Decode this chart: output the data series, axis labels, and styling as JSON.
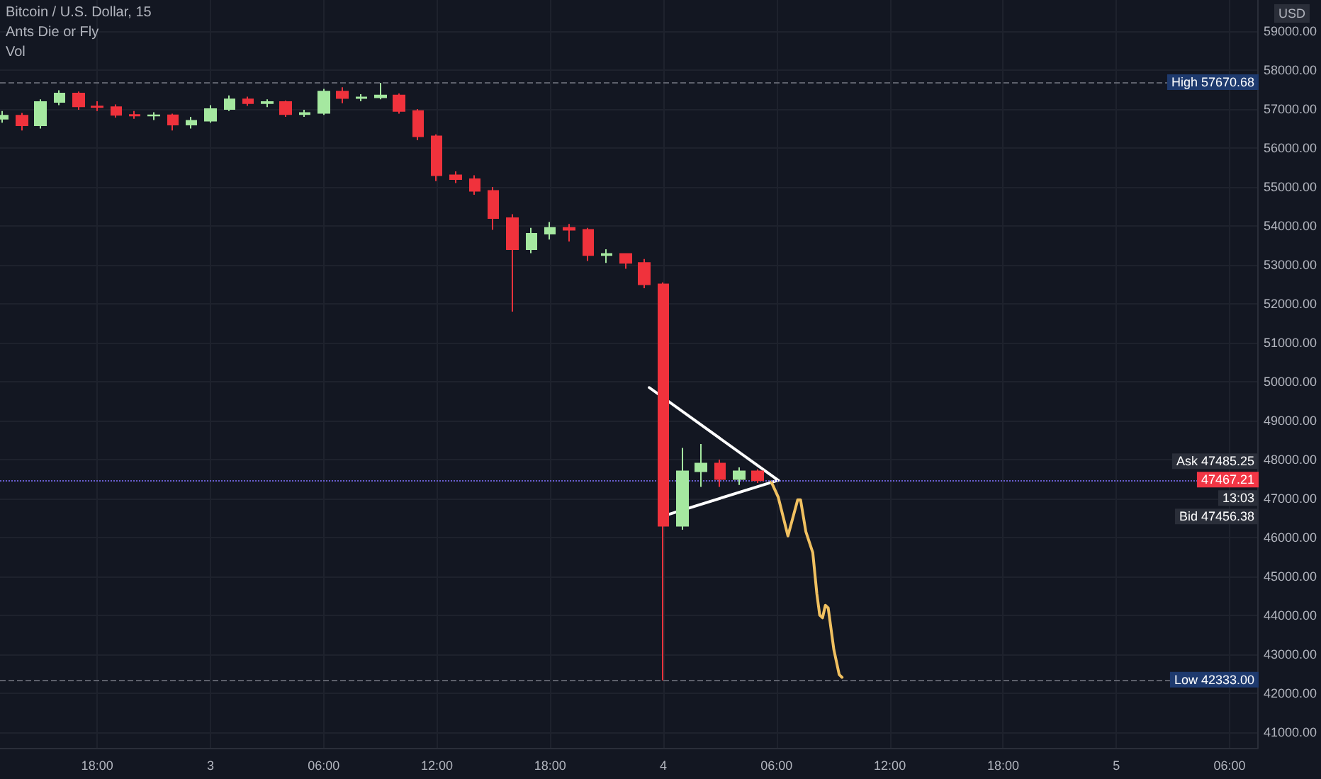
{
  "chart_data": {
    "type": "candlestick",
    "title": "Bitcoin / U.S. Dollar, 15",
    "subtitle": "Ants Die or Fly",
    "ylabel": "USD",
    "annotations": [
      "Vol",
      "Ask 47485.25",
      "13:03",
      "Bid 47456.38"
    ],
    "x": [
      "--12-02T13:00",
      "--12-02T14:00",
      "--12-02T15:00",
      "--12-02T16:00",
      "--12-02T17:00",
      "--12-02T18:00",
      "--12-02T19:00",
      "--12-02T20:00",
      "--12-02T21:00",
      "--12-02T22:00",
      "--12-02T23:00",
      "--12-03T00:00",
      "--12-03T01:00",
      "--12-03T02:00",
      "--12-03T03:00",
      "--12-03T04:00",
      "--12-03T05:00",
      "--12-03T06:00",
      "--12-03T07:00",
      "--12-03T08:00",
      "--12-03T09:00",
      "--12-03T10:00",
      "--12-03T11:00",
      "--12-03T12:00",
      "--12-03T13:00",
      "--12-03T14:00",
      "--12-03T15:00",
      "--12-03T16:00",
      "--12-03T17:00",
      "--12-03T18:00",
      "--12-03T19:00",
      "--12-03T20:00",
      "--12-03T21:00",
      "--12-03T22:00",
      "--12-03T23:00",
      "--12-04T00:00",
      "--12-04T01:00",
      "--12-04T02:00",
      "--12-04T03:00",
      "--12-04T04:00",
      "--12-04T05:00"
    ],
    "ohlc": [
      [
        56750,
        56950,
        56650,
        56830
      ],
      [
        56830,
        56900,
        56450,
        56580
      ],
      [
        56580,
        57250,
        56500,
        57180
      ],
      [
        57180,
        57480,
        57100,
        57400
      ],
      [
        57400,
        57450,
        56980,
        57070
      ],
      [
        57070,
        57200,
        56950,
        57050
      ],
      [
        57050,
        57120,
        56780,
        56850
      ],
      [
        56850,
        56950,
        56750,
        56830
      ],
      [
        56830,
        56920,
        56720,
        56840
      ],
      [
        56840,
        56880,
        56450,
        56600
      ],
      [
        56600,
        56800,
        56500,
        56700
      ],
      [
        56700,
        57100,
        56650,
        57000
      ],
      [
        57000,
        57350,
        56950,
        57250
      ],
      [
        57250,
        57320,
        57080,
        57150
      ],
      [
        57150,
        57250,
        57050,
        57180
      ],
      [
        57180,
        57220,
        56800,
        56870
      ],
      [
        56870,
        56980,
        56800,
        56900
      ],
      [
        56900,
        57520,
        56850,
        57450
      ],
      [
        57450,
        57560,
        57150,
        57280
      ],
      [
        57280,
        57380,
        57200,
        57300
      ],
      [
        57300,
        57670.68,
        57250,
        57350
      ],
      [
        57350,
        57400,
        56880,
        56950
      ],
      [
        56950,
        57000,
        56200,
        56300
      ],
      [
        56300,
        56350,
        55150,
        55300
      ],
      [
        55300,
        55400,
        55100,
        55200
      ],
      [
        55200,
        55300,
        54800,
        54900
      ],
      [
        54900,
        55000,
        53900,
        54200
      ],
      [
        54200,
        54300,
        51800,
        53400
      ],
      [
        53400,
        53950,
        53300,
        53800
      ],
      [
        53800,
        54100,
        53650,
        53950
      ],
      [
        53950,
        54050,
        53600,
        53900
      ],
      [
        53900,
        53950,
        53100,
        53250
      ],
      [
        53250,
        53400,
        53050,
        53280
      ],
      [
        53280,
        53300,
        52900,
        53050
      ],
      [
        53050,
        53150,
        52400,
        52500
      ],
      [
        52500,
        52550,
        42333,
        46300
      ],
      [
        46300,
        48300,
        46200,
        47700
      ],
      [
        47700,
        48400,
        47300,
        47900
      ],
      [
        47900,
        48000,
        47300,
        47500
      ],
      [
        47500,
        47800,
        47350,
        47700
      ],
      [
        47700,
        47750,
        47400,
        47467.21
      ]
    ],
    "colors": [
      "#a5e8a0",
      "#f0323c",
      "#a5e8a0",
      "#a5e8a0",
      "#f0323c",
      "#f0323c",
      "#f0323c",
      "#f0323c",
      "#a5e8a0",
      "#f0323c",
      "#a5e8a0",
      "#a5e8a0",
      "#a5e8a0",
      "#f0323c",
      "#a5e8a0",
      "#f0323c",
      "#a5e8a0",
      "#a5e8a0",
      "#f0323c",
      "#a5e8a0",
      "#a5e8a0",
      "#f0323c",
      "#f0323c",
      "#f0323c",
      "#f0323c",
      "#f0323c",
      "#f0323c",
      "#f0323c",
      "#a5e8a0",
      "#a5e8a0",
      "#f0323c",
      "#f0323c",
      "#a5e8a0",
      "#f0323c",
      "#f0323c",
      "#f0323c",
      "#a5e8a0",
      "#a5e8a0",
      "#f0323c",
      "#a5e8a0",
      "#f0323c"
    ],
    "series": [
      {
        "type": "line",
        "color": "#ffffff",
        "x": [
          "--12-03T23:15",
          "--12-04T06:05"
        ],
        "values": [
          49850,
          47470
        ]
      },
      {
        "type": "line",
        "color": "#ffffff",
        "x": [
          "--12-04T00:11",
          "--12-04T06:05"
        ],
        "values": [
          46580,
          47470
        ]
      },
      {
        "type": "line",
        "color": "#f0c060",
        "x": [
          "--12-04T05:43",
          "--12-04T06:05",
          "--12-04T06:27",
          "--12-04T06:36",
          "--12-04T07:07",
          "--12-04T07:16",
          "--12-04T07:33",
          "--12-04T07:55",
          "--12-04T08:08",
          "--12-04T08:17",
          "--12-04T08:26",
          "--12-04T08:35",
          "--12-04T08:44",
          "--12-04T09:02",
          "--12-04T09:19",
          "--12-04T09:28"
        ],
        "values": [
          47430,
          47040,
          46330,
          46040,
          46970,
          46970,
          46150,
          45610,
          44550,
          44010,
          43940,
          44260,
          44190,
          43120,
          42480,
          42410
        ]
      }
    ],
    "marker": "none",
    "line_style": "solid",
    "ref_lines": [
      {
        "axis": "y",
        "value": 57670.68,
        "label": "High 57670.68",
        "color": "#5d606b",
        "line_style": "dashed"
      },
      {
        "axis": "y",
        "value": 42333,
        "label": "Low 42333.00",
        "color": "#5d606b",
        "line_style": "dashed"
      },
      {
        "axis": "y",
        "value": 47467.21,
        "label": "47467.21",
        "color": "#6a5fd0",
        "line_style": "dotted"
      }
    ],
    "xlim": [
      "--12-02T12:51",
      "--12-05T07:30"
    ],
    "xticks": [
      {
        "value": "--12-02T18:00",
        "label": "18:00"
      },
      {
        "value": "--12-03T00:00",
        "label": "3"
      },
      {
        "value": "--12-03T06:00",
        "label": "06:00"
      },
      {
        "value": "--12-03T12:00",
        "label": "12:00"
      },
      {
        "value": "--12-03T18:00",
        "label": "18:00"
      },
      {
        "value": "--12-04T00:00",
        "label": "4"
      },
      {
        "value": "--12-04T06:00",
        "label": "06:00"
      },
      {
        "value": "--12-04T12:00",
        "label": "12:00"
      },
      {
        "value": "--12-04T18:00",
        "label": "18:00"
      },
      {
        "value": "--12-05T00:00",
        "label": "5"
      },
      {
        "value": "--12-05T06:00",
        "label": "06:00"
      }
    ],
    "ylim": [
      40600,
      59800
    ],
    "yticks": [
      {
        "value": 41000,
        "label": "41000.00"
      },
      {
        "value": 42000,
        "label": "42000.00"
      },
      {
        "value": 43000,
        "label": "43000.00"
      },
      {
        "value": 44000,
        "label": "44000.00"
      },
      {
        "value": 45000,
        "label": "45000.00"
      },
      {
        "value": 46000,
        "label": "46000.00"
      },
      {
        "value": 47000,
        "label": "47000.00"
      },
      {
        "value": 48000,
        "label": "48000.00"
      },
      {
        "value": 49000,
        "label": "49000.00"
      },
      {
        "value": 50000,
        "label": "50000.00"
      },
      {
        "value": 51000,
        "label": "51000.00"
      },
      {
        "value": 52000,
        "label": "52000.00"
      },
      {
        "value": 53000,
        "label": "53000.00"
      },
      {
        "value": 54000,
        "label": "54000.00"
      },
      {
        "value": 55000,
        "label": "55000.00"
      },
      {
        "value": 56000,
        "label": "56000.00"
      },
      {
        "value": 57000,
        "label": "57000.00"
      },
      {
        "value": 58000,
        "label": "58000.00"
      },
      {
        "value": 59000,
        "label": "59000.00"
      }
    ],
    "grid": true
  }
}
